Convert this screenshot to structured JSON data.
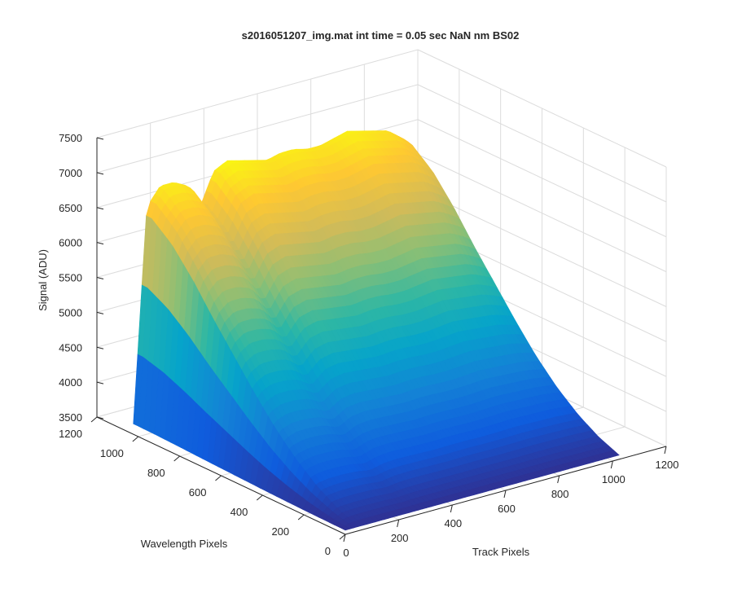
{
  "chart_data": {
    "type": "surface",
    "title": "s2016051207_img.mat int time = 0.05 sec  NaN nm BS02",
    "xlabel": "Track Pixels",
    "ylabel": "Wavelength Pixels",
    "zlabel": "Signal (ADU)",
    "xlim": [
      0,
      1200
    ],
    "ylim": [
      0,
      1200
    ],
    "zlim": [
      3500,
      7500
    ],
    "x_ticks": [
      0,
      200,
      400,
      600,
      800,
      1000,
      1200
    ],
    "y_ticks": [
      0,
      200,
      400,
      600,
      800,
      1000,
      1200
    ],
    "z_ticks": [
      3500,
      4000,
      4500,
      5000,
      5500,
      6000,
      6500,
      7000,
      7500
    ],
    "grid": true,
    "colormap": "parula",
    "surface_profile": {
      "track_pixels": [
        0,
        50,
        100,
        150,
        200,
        250,
        300,
        350,
        400,
        450,
        500,
        550,
        600,
        650,
        700,
        750,
        800,
        850,
        900,
        950,
        1000,
        1024
      ],
      "peak_signal_at_wavelength_1024": [
        3650,
        6700,
        6950,
        6950,
        6850,
        6500,
        6950,
        7050,
        7000,
        6950,
        6900,
        6950,
        6950,
        6900,
        6900,
        6950,
        7000,
        6950,
        6900,
        6850,
        6700,
        6600
      ],
      "wavelength_pixels": [
        0,
        100,
        200,
        300,
        400,
        500,
        600,
        700,
        800,
        900,
        1000,
        1024
      ],
      "relative_profile_along_wavelength": [
        0.0,
        0.04,
        0.1,
        0.18,
        0.28,
        0.4,
        0.53,
        0.66,
        0.8,
        0.92,
        1.0,
        1.0
      ]
    }
  }
}
